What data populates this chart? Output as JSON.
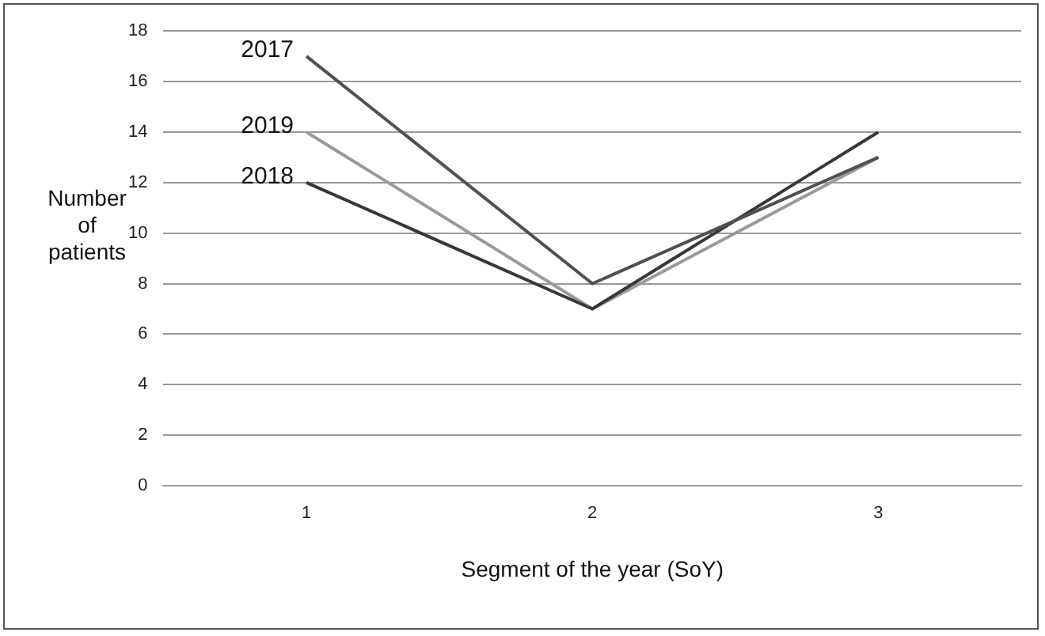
{
  "chart_data": {
    "type": "line",
    "xlabel": "Segment of the year (SoY)",
    "ylabel": "Number of patients",
    "categories": [
      "1",
      "2",
      "3"
    ],
    "series": [
      {
        "name": "2017",
        "color": "#505050",
        "values": [
          17,
          8,
          13
        ]
      },
      {
        "name": "2018",
        "color": "#383838",
        "values": [
          12,
          7,
          14
        ]
      },
      {
        "name": "2019",
        "color": "#9a9a9a",
        "values": [
          14,
          7,
          13
        ]
      }
    ],
    "ylim": [
      0,
      18
    ],
    "yticks": [
      0,
      2,
      4,
      6,
      8,
      10,
      12,
      14,
      16,
      18
    ],
    "grid": "y",
    "legend": false,
    "marker": "none",
    "line_style": "solid"
  }
}
